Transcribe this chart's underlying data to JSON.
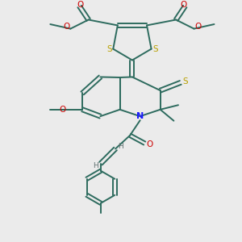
{
  "bg_color": "#ebebeb",
  "bond_color": "#2d6b5e",
  "bond_width": 1.4,
  "S_color": "#b8a000",
  "N_color": "#1a1aff",
  "O_color": "#cc0000",
  "H_color": "#607070",
  "figsize": [
    3.0,
    3.0
  ],
  "dpi": 100,
  "xlim": [
    0,
    10
  ],
  "ylim": [
    0,
    10.5
  ]
}
